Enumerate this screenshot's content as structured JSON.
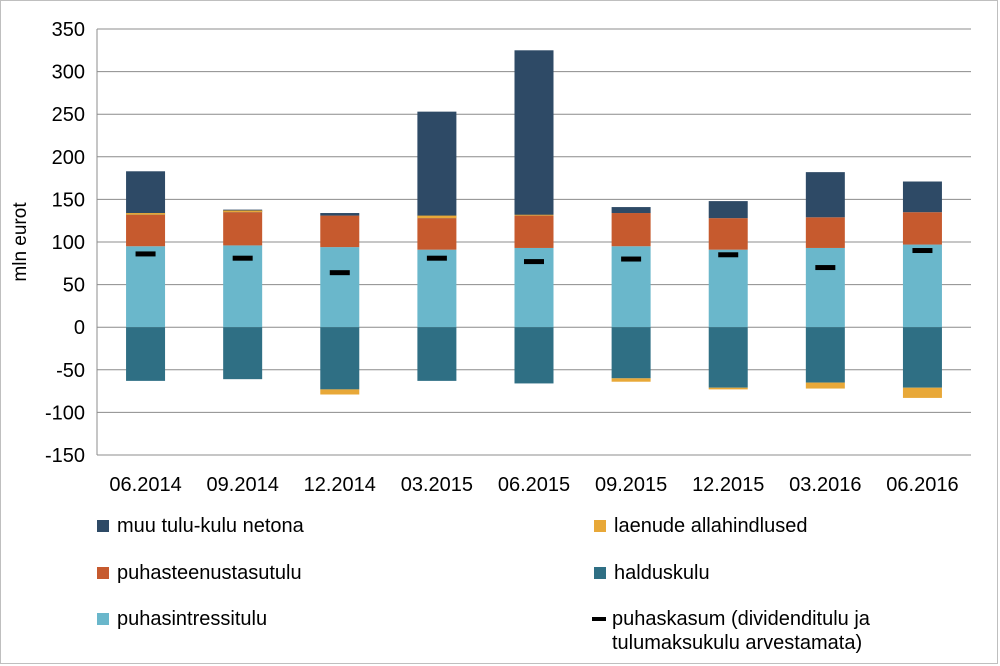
{
  "chart_data": {
    "type": "bar",
    "stacked": true,
    "title": "",
    "xlabel": "",
    "ylabel": "mln eurot",
    "ylim": [
      -150,
      350
    ],
    "yticks": [
      350,
      300,
      250,
      200,
      150,
      100,
      50,
      0,
      -50,
      -100,
      -150
    ],
    "ytick_labels": [
      "350",
      "300",
      "250",
      "200",
      "150",
      "100",
      "50",
      "0",
      "-50",
      "-100",
      "-150"
    ],
    "grid": true,
    "legend_position": "bottom",
    "categories": [
      "06.2014",
      "09.2014",
      "12.2014",
      "03.2015",
      "06.2015",
      "09.2015",
      "12.2015",
      "03.2016",
      "06.2016"
    ],
    "series": [
      {
        "name": "puhasintressitulu",
        "color": "#6ab7cb",
        "values": [
          95,
          96,
          94,
          91,
          93,
          95,
          91,
          93,
          97
        ]
      },
      {
        "name": "puhasteenustasutulu",
        "color": "#c65a2e",
        "values": [
          37,
          39,
          37,
          37,
          38,
          39,
          37,
          36,
          38
        ]
      },
      {
        "name": "muu tulu-kulu netona",
        "color": "#2e4a66",
        "values": [
          51,
          3,
          3,
          125,
          194,
          7,
          20,
          53,
          36
        ]
      },
      {
        "name": "halduskulu",
        "color": "#2f6f84",
        "values": [
          -63,
          -61,
          -73,
          -63,
          -66,
          -60,
          -71,
          -65,
          -71
        ]
      },
      {
        "name": "laenude allahindlused",
        "color": "#e8a838",
        "values": [
          0,
          0,
          -6,
          0,
          0,
          -4,
          -2,
          -7,
          -12
        ]
      }
    ],
    "line_markers": {
      "name": "puhaskasum (dividenditulu ja tulumaksukulu arvestamata)",
      "color": "#000000",
      "values": [
        86,
        81,
        64,
        81,
        77,
        80,
        85,
        70,
        90
      ]
    },
    "stack_extras": {
      "note_color": "#e8a838",
      "positive_top_sliver": [
        2,
        2,
        0,
        3,
        1,
        0,
        0,
        0,
        0
      ]
    }
  },
  "legend": {
    "items": [
      {
        "label": "muu tulu-kulu netona",
        "kind": "box",
        "color": "#2e4a66"
      },
      {
        "label": "laenude allahindlused",
        "kind": "box",
        "color": "#e8a838"
      },
      {
        "label": "puhasteenustasutulu",
        "kind": "box",
        "color": "#c65a2e"
      },
      {
        "label": "halduskulu",
        "kind": "box",
        "color": "#2f6f84"
      },
      {
        "label": "puhasintressitulu",
        "kind": "box",
        "color": "#6ab7cb"
      },
      {
        "label": "puhaskasum (dividenditulu ja tulumaksukulu arvestamata)",
        "kind": "dash",
        "color": "#000000"
      }
    ]
  }
}
